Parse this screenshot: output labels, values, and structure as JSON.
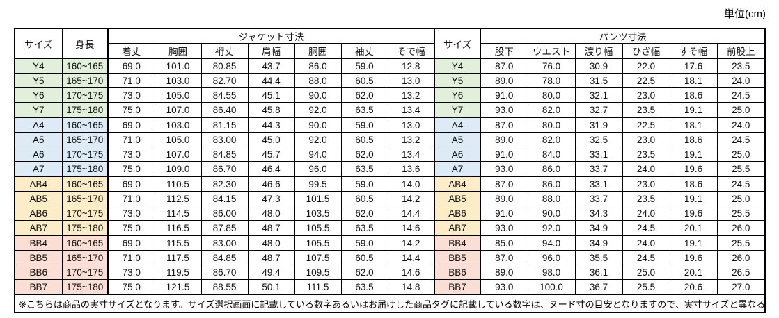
{
  "unit_label": "単位(cm)",
  "table": {
    "headers": {
      "size": "サイズ",
      "height": "身長",
      "jacket_group": "ジャケット寸法",
      "size2": "サイズ",
      "pants_group": "パンツ寸法",
      "jacket_cols": [
        "着丈",
        "胸囲",
        "裄丈",
        "肩幅",
        "胴囲",
        "袖丈",
        "そで幅"
      ],
      "pants_cols": [
        "股下",
        "ウエスト",
        "渡り幅",
        "ひざ幅",
        "すそ幅",
        "前股上"
      ]
    },
    "groups": [
      {
        "name": "Y",
        "color": "#e2efda",
        "rows": [
          {
            "size": "Y4",
            "height": "160~165",
            "jacket": [
              "69.0",
              "101.0",
              "80.85",
              "43.7",
              "86.0",
              "59.0",
              "12.8"
            ],
            "pants": [
              "87.0",
              "76.0",
              "30.9",
              "22.0",
              "17.6",
              "23.5"
            ]
          },
          {
            "size": "Y5",
            "height": "165~170",
            "jacket": [
              "71.0",
              "103.0",
              "82.70",
              "44.4",
              "88.0",
              "60.5",
              "13.0"
            ],
            "pants": [
              "89.0",
              "78.0",
              "31.5",
              "22.5",
              "18.1",
              "24.0"
            ]
          },
          {
            "size": "Y6",
            "height": "170~175",
            "jacket": [
              "73.0",
              "105.0",
              "84.55",
              "45.1",
              "90.0",
              "62.0",
              "13.2"
            ],
            "pants": [
              "91.0",
              "80.0",
              "32.1",
              "23.0",
              "18.6",
              "24.5"
            ]
          },
          {
            "size": "Y7",
            "height": "175~180",
            "jacket": [
              "75.0",
              "107.0",
              "86.40",
              "45.8",
              "92.0",
              "63.5",
              "13.4"
            ],
            "pants": [
              "93.0",
              "82.0",
              "32.7",
              "23.5",
              "19.1",
              "25.0"
            ]
          }
        ]
      },
      {
        "name": "A",
        "color": "#ddebf7",
        "rows": [
          {
            "size": "A4",
            "height": "160~165",
            "jacket": [
              "69.0",
              "103.0",
              "81.15",
              "44.3",
              "90.0",
              "59.0",
              "13.0"
            ],
            "pants": [
              "87.0",
              "80.0",
              "31.9",
              "22.5",
              "18.1",
              "24.0"
            ]
          },
          {
            "size": "A5",
            "height": "165~170",
            "jacket": [
              "71.0",
              "105.0",
              "83.00",
              "45.0",
              "92.0",
              "60.5",
              "13.2"
            ],
            "pants": [
              "89.0",
              "82.0",
              "32.5",
              "23.0",
              "18.6",
              "24.5"
            ]
          },
          {
            "size": "A6",
            "height": "170~175",
            "jacket": [
              "73.0",
              "107.0",
              "84.85",
              "45.7",
              "94.0",
              "62.0",
              "13.4"
            ],
            "pants": [
              "91.0",
              "84.0",
              "33.1",
              "23.5",
              "19.1",
              "25.0"
            ]
          },
          {
            "size": "A7",
            "height": "175~180",
            "jacket": [
              "75.0",
              "109.0",
              "86.70",
              "46.4",
              "96.0",
              "63.5",
              "13.6"
            ],
            "pants": [
              "93.0",
              "86.0",
              "33.7",
              "24.0",
              "19.6",
              "25.5"
            ]
          }
        ]
      },
      {
        "name": "AB",
        "color": "#fdecc8",
        "rows": [
          {
            "size": "AB4",
            "height": "160~165",
            "jacket": [
              "69.0",
              "110.5",
              "82.30",
              "46.6",
              "99.5",
              "59.0",
              "14.0"
            ],
            "pants": [
              "87.0",
              "86.0",
              "33.1",
              "23.0",
              "18.6",
              "24.5"
            ]
          },
          {
            "size": "AB5",
            "height": "165~170",
            "jacket": [
              "71.0",
              "112.5",
              "84.15",
              "47.3",
              "101.5",
              "60.5",
              "14.2"
            ],
            "pants": [
              "89.0",
              "88.0",
              "33.7",
              "23.5",
              "19.1",
              "25.0"
            ]
          },
          {
            "size": "AB6",
            "height": "170~175",
            "jacket": [
              "73.0",
              "114.5",
              "86.00",
              "48.0",
              "103.5",
              "62.0",
              "14.4"
            ],
            "pants": [
              "91.0",
              "90.0",
              "34.3",
              "24.0",
              "19.6",
              "25.5"
            ]
          },
          {
            "size": "AB7",
            "height": "175~180",
            "jacket": [
              "75.0",
              "116.5",
              "87.85",
              "48.7",
              "105.5",
              "63.5",
              "14.6"
            ],
            "pants": [
              "93.0",
              "92.0",
              "34.9",
              "24.5",
              "20.1",
              "26.0"
            ]
          }
        ]
      },
      {
        "name": "BB",
        "color": "#fcdfd4",
        "rows": [
          {
            "size": "BB4",
            "height": "160~165",
            "jacket": [
              "69.0",
              "115.5",
              "83.00",
              "48.0",
              "105.5",
              "59.0",
              "14.2"
            ],
            "pants": [
              "85.0",
              "94.0",
              "34.9",
              "24.0",
              "19.1",
              "25.5"
            ]
          },
          {
            "size": "BB5",
            "height": "165~170",
            "jacket": [
              "71.0",
              "117.5",
              "84.85",
              "48.7",
              "107.5",
              "60.5",
              "14.4"
            ],
            "pants": [
              "87.0",
              "96.0",
              "35.5",
              "24.5",
              "19.6",
              "26.0"
            ]
          },
          {
            "size": "BB6",
            "height": "170~175",
            "jacket": [
              "73.0",
              "119.5",
              "86.70",
              "49.4",
              "109.5",
              "62.0",
              "14.6"
            ],
            "pants": [
              "89.0",
              "98.0",
              "36.1",
              "25.0",
              "20.1",
              "26.5"
            ]
          },
          {
            "size": "BB7",
            "height": "175~180",
            "jacket": [
              "75.0",
              "121.5",
              "88.55",
              "50.1",
              "111.5",
              "63.5",
              "14.8"
            ],
            "pants": [
              "93.0",
              "100.0",
              "36.7",
              "25.5",
              "20.6",
              "27.0"
            ]
          }
        ]
      }
    ],
    "note": "※こちらは商品の実寸サイズとなります。サイズ選択画面に記載している数字あるいはお届けした商品タグに記載している数字は、ヌード寸の目安となりますので、実寸サイズと異なる場合がございます。"
  },
  "colors": {
    "border": "#000000",
    "background": "#ffffff",
    "group_y": "#e2efda",
    "group_a": "#ddebf7",
    "group_ab": "#fdecc8",
    "group_bb": "#fcdfd4"
  }
}
